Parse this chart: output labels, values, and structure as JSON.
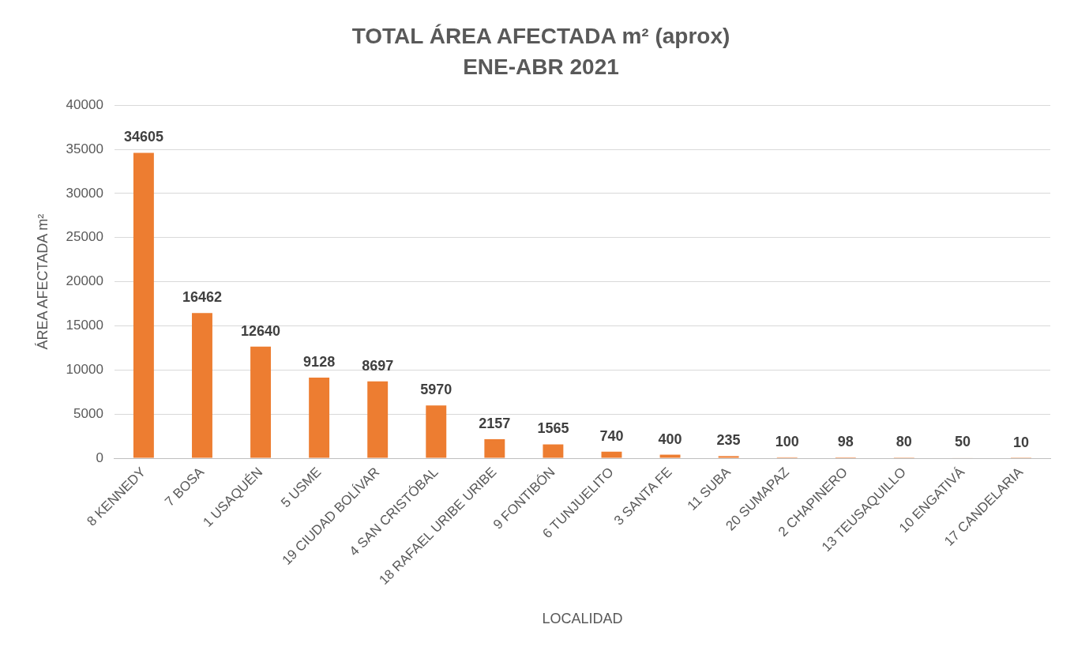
{
  "chart_data": {
    "type": "bar",
    "title": "TOTAL ÁREA AFECTADA m² (aprox)",
    "subtitle": "ENE-ABR 2021",
    "xlabel": "LOCALIDAD",
    "ylabel": "ÁREA AFECTADA m²",
    "categories": [
      "8 KENNEDY",
      "7 BOSA",
      "1 USAQUÉN",
      "5 USME",
      "19 CIUDAD BOLÍVAR",
      "4 SAN CRISTÓBAL",
      "18 RAFAEL URIBE URIBE",
      "9 FONTIBÓN",
      "6 TUNJUELITO",
      "3 SANTA FE",
      "11 SUBA",
      "20 SUMAPAZ",
      "2 CHAPINERO",
      "13 TEUSAQUILLO",
      "10 ENGATIVÁ",
      "17 CANDELARIA"
    ],
    "values": [
      34605,
      16462,
      12640,
      9128,
      8697,
      5970,
      2157,
      1565,
      740,
      400,
      235,
      100,
      98,
      80,
      50,
      10
    ],
    "color": "#ed7d31",
    "ylim": [
      0,
      40000
    ],
    "yticks": [
      0,
      5000,
      10000,
      15000,
      20000,
      25000,
      30000,
      35000,
      40000
    ],
    "grid": "y",
    "data_labels": true,
    "legend": false
  }
}
